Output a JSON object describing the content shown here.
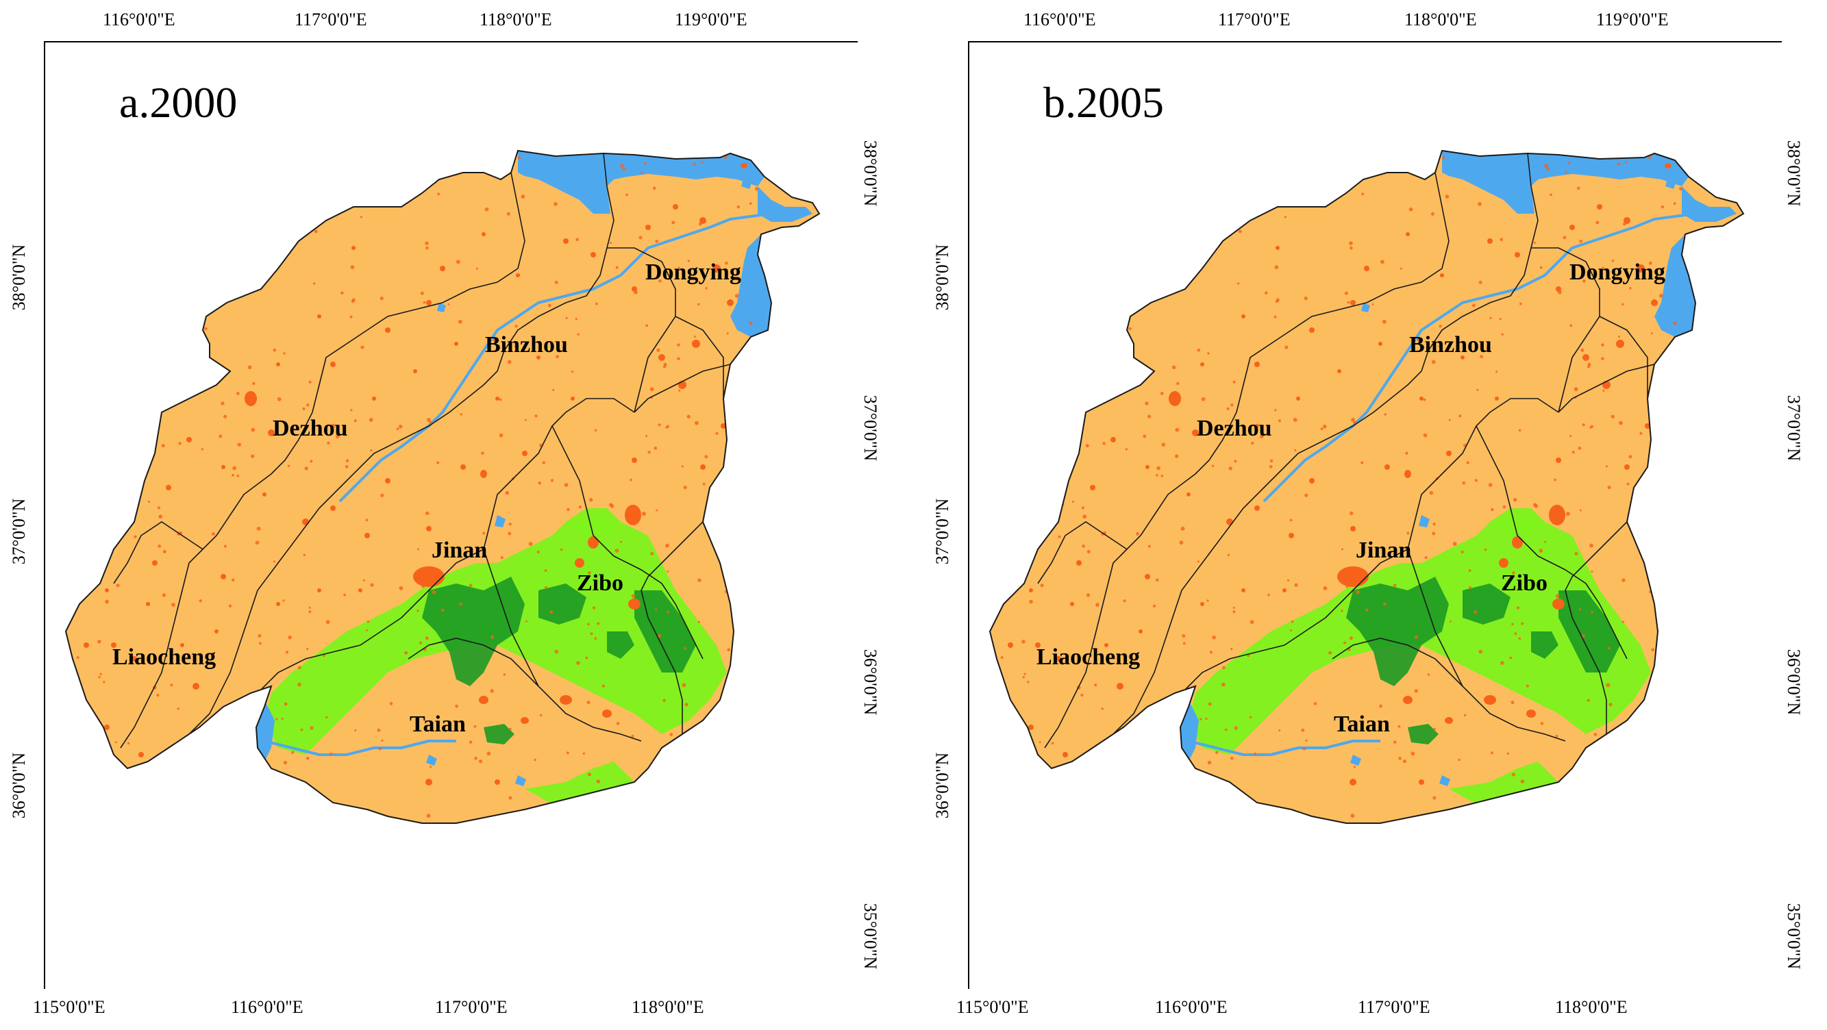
{
  "panels": [
    {
      "title": "a.2000",
      "top_lon_labels": [
        "116°0'0\"E",
        "117°0'0\"E",
        "118°0'0\"E",
        "119°0'0\"E"
      ],
      "bottom_lon_labels": [
        "115°0'0\"E",
        "116°0'0\"E",
        "117°0'0\"E",
        "118°0'0\"E"
      ],
      "left_lat_labels": [
        "38°0'0\"N",
        "37°0'0\"N",
        "36°0'0\"N"
      ],
      "right_lat_labels": [
        "38°0'0\"N",
        "37°0'0\"N",
        "36°0'0\"N",
        "35°0'0\"N"
      ],
      "cities": [
        "Dongying",
        "Binzhou",
        "Dezhou",
        "Jinan",
        "Zibo",
        "Liaocheng",
        "Taian"
      ]
    },
    {
      "title": "b.2005",
      "top_lon_labels": [
        "116°0'0\"E",
        "117°0'0\"E",
        "118°0'0\"E",
        "119°0'0\"E"
      ],
      "bottom_lon_labels": [
        "115°0'0\"E",
        "116°0'0\"E",
        "117°0'0\"E",
        "118°0'0\"E"
      ],
      "left_lat_labels": [
        "38°0'0\"N",
        "37°0'0\"N",
        "36°0'0\"N"
      ],
      "right_lat_labels": [
        "38°0'0\"N",
        "37°0'0\"N",
        "36°0'0\"N",
        "35°0'0\"N"
      ],
      "cities": [
        "Dongying",
        "Binzhou",
        "Dezhou",
        "Jinan",
        "Zibo",
        "Liaocheng",
        "Taian"
      ]
    }
  ],
  "colors": {
    "cropland": "#fcbd5f",
    "water": "#4ea8ee",
    "built_up": "#f7621a",
    "grassland": "#7ef21c",
    "forest": "#1c9a24",
    "boundary": "#1a1a1a"
  }
}
